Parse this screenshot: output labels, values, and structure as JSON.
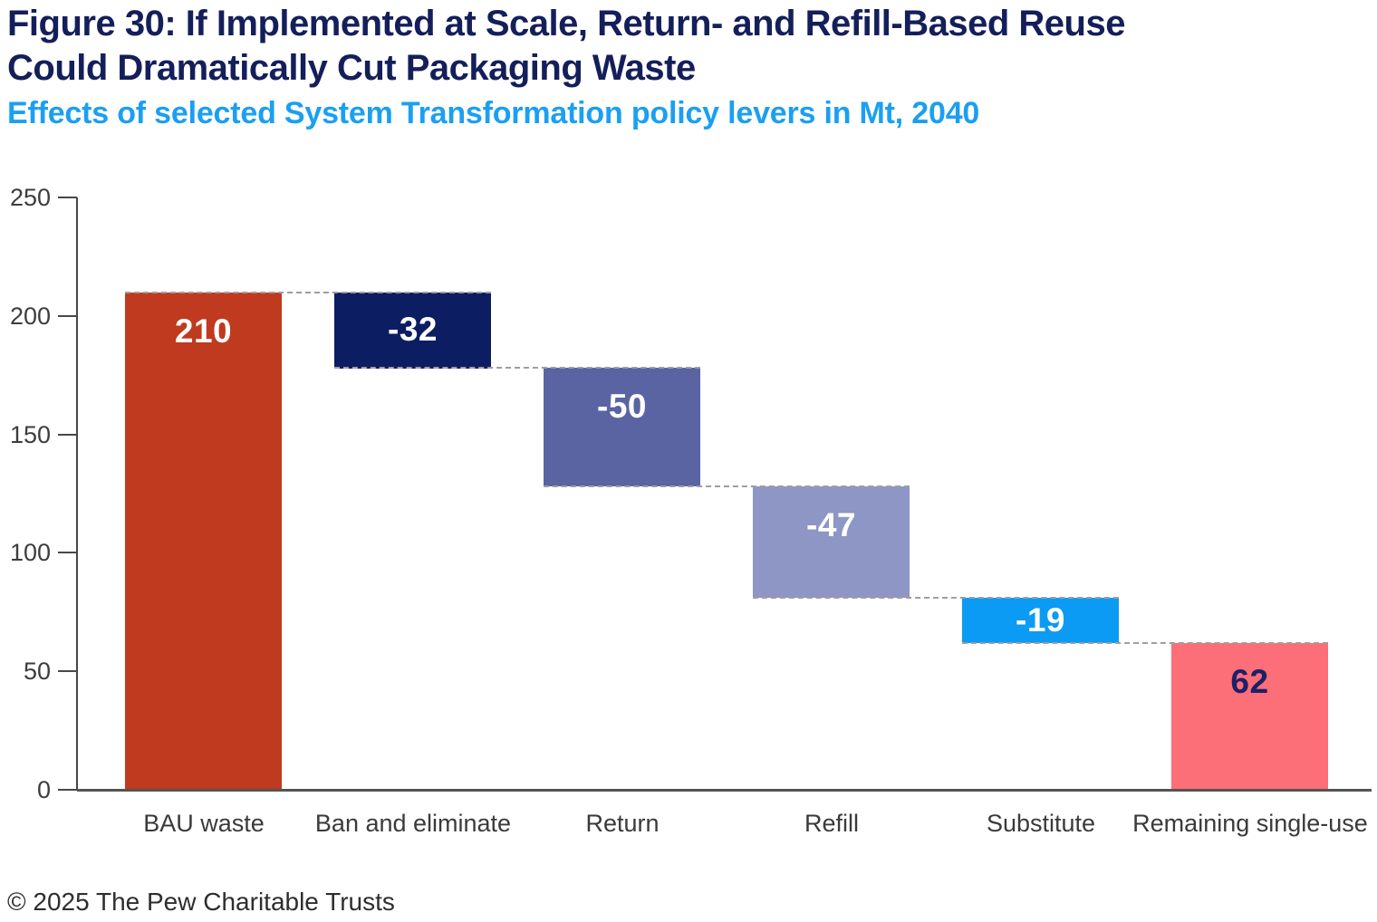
{
  "title": {
    "line1": "Figure 30: If Implemented at Scale, Return- and Refill-Based Reuse",
    "line2": "Could Dramatically Cut Packaging Waste",
    "color": "#141f5a"
  },
  "subtitle": {
    "text": "Effects of selected System Transformation policy levers in Mt, 2040",
    "color": "#1b9ff2"
  },
  "footer": {
    "text": "© 2025 The Pew Charitable Trusts"
  },
  "chart_data": {
    "type": "bar",
    "subtype": "waterfall",
    "unit": "Mt",
    "year": "2040",
    "grid": false,
    "ylim": [
      0,
      250
    ],
    "yticks": [
      "0",
      "50",
      "100",
      "150",
      "200",
      "250"
    ],
    "ytick_values": [
      0,
      50,
      100,
      150,
      200,
      250
    ],
    "categories": [
      "BAU waste",
      "Ban and eliminate",
      "Return",
      "Refill",
      "Substitute",
      "Remaining single-use"
    ],
    "series": [
      {
        "label": "BAU waste",
        "value": 210,
        "display": "210",
        "kind": "absolute",
        "color": "#bf3a1e",
        "label_color": "#ffffff"
      },
      {
        "label": "Ban and eliminate",
        "value": -32,
        "display": "-32",
        "kind": "relative",
        "color": "#0c1d62",
        "label_color": "#ffffff"
      },
      {
        "label": "Return",
        "value": -50,
        "display": "-50",
        "kind": "relative",
        "color": "#5a64a2",
        "label_color": "#ffffff"
      },
      {
        "label": "Refill",
        "value": -47,
        "display": "-47",
        "kind": "relative",
        "color": "#8d96c4",
        "label_color": "#ffffff"
      },
      {
        "label": "Substitute",
        "value": -19,
        "display": "-19",
        "kind": "relative",
        "color": "#0c9bf4",
        "label_color": "#ffffff"
      },
      {
        "label": "Remaining single-use",
        "value": 62,
        "display": "62",
        "kind": "absolute",
        "color": "#fc6e78",
        "label_color": "#1b2167"
      }
    ],
    "connector_style": "dashed",
    "axis_color": "#474747",
    "connector_color": "#9e9e9e"
  }
}
